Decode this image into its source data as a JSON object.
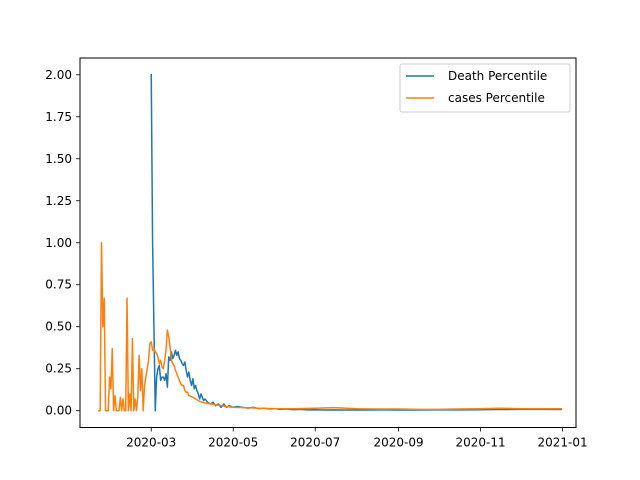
{
  "chart_data": {
    "type": "line",
    "x_axis": {
      "kind": "date",
      "xlim": [
        "2020-01-08",
        "2021-01-11"
      ],
      "ticks": [
        "2020-03-01",
        "2020-05-01",
        "2020-07-01",
        "2020-09-01",
        "2020-11-01",
        "2021-01-01"
      ],
      "tick_labels": [
        "2020-03",
        "2020-05",
        "2020-07",
        "2020-09",
        "2020-11",
        "2021-01"
      ]
    },
    "y_axis": {
      "ylim": [
        -0.1,
        2.1
      ],
      "ticks": [
        0,
        0.25,
        0.5,
        0.75,
        1.0,
        1.25,
        1.5,
        1.75,
        2.0
      ],
      "tick_labels": [
        "0.00",
        "0.25",
        "0.50",
        "0.75",
        "1.00",
        "1.25",
        "1.50",
        "1.75",
        "2.00"
      ]
    },
    "grid": false,
    "legend": {
      "placement": "upper right"
    },
    "series": [
      {
        "name": "Death Percentile",
        "color": "#1f77b4",
        "points": [
          [
            "2020-03-01",
            2.0
          ],
          [
            "2020-03-02",
            1.0
          ],
          [
            "2020-03-03",
            0.5
          ],
          [
            "2020-03-04",
            0.0
          ],
          [
            "2020-03-05",
            0.2
          ],
          [
            "2020-03-06",
            0.25
          ],
          [
            "2020-03-07",
            0.27
          ],
          [
            "2020-03-08",
            0.18
          ],
          [
            "2020-03-09",
            0.2
          ],
          [
            "2020-03-10",
            0.2
          ],
          [
            "2020-03-11",
            0.18
          ],
          [
            "2020-03-12",
            0.22
          ],
          [
            "2020-03-13",
            0.14
          ],
          [
            "2020-03-14",
            0.32
          ],
          [
            "2020-03-15",
            0.3
          ],
          [
            "2020-03-16",
            0.35
          ],
          [
            "2020-03-17",
            0.31
          ],
          [
            "2020-03-18",
            0.33
          ],
          [
            "2020-03-19",
            0.36
          ],
          [
            "2020-03-20",
            0.33
          ],
          [
            "2020-03-21",
            0.35
          ],
          [
            "2020-03-22",
            0.31
          ],
          [
            "2020-03-23",
            0.3
          ],
          [
            "2020-03-24",
            0.28
          ],
          [
            "2020-03-25",
            0.27
          ],
          [
            "2020-03-26",
            0.29
          ],
          [
            "2020-03-27",
            0.24
          ],
          [
            "2020-03-28",
            0.2
          ],
          [
            "2020-03-29",
            0.23
          ],
          [
            "2020-03-30",
            0.18
          ],
          [
            "2020-03-31",
            0.15
          ],
          [
            "2020-04-01",
            0.19
          ],
          [
            "2020-04-02",
            0.13
          ],
          [
            "2020-04-03",
            0.15
          ],
          [
            "2020-04-04",
            0.12
          ],
          [
            "2020-04-05",
            0.1
          ],
          [
            "2020-04-06",
            0.07
          ],
          [
            "2020-04-07",
            0.1
          ],
          [
            "2020-04-08",
            0.08
          ],
          [
            "2020-04-09",
            0.06
          ],
          [
            "2020-04-10",
            0.07
          ],
          [
            "2020-04-12",
            0.05
          ],
          [
            "2020-04-14",
            0.04
          ],
          [
            "2020-04-16",
            0.05
          ],
          [
            "2020-04-18",
            0.03
          ],
          [
            "2020-04-20",
            0.04
          ],
          [
            "2020-04-22",
            0.02
          ],
          [
            "2020-04-24",
            0.04
          ],
          [
            "2020-04-26",
            0.02
          ],
          [
            "2020-04-28",
            0.03
          ],
          [
            "2020-05-01",
            0.02
          ],
          [
            "2020-05-04",
            0.025
          ],
          [
            "2020-05-08",
            0.02
          ],
          [
            "2020-05-12",
            0.015
          ],
          [
            "2020-05-16",
            0.02
          ],
          [
            "2020-05-20",
            0.012
          ],
          [
            "2020-05-24",
            0.015
          ],
          [
            "2020-05-28",
            0.01
          ],
          [
            "2020-06-01",
            0.012
          ],
          [
            "2020-06-05",
            0.008
          ],
          [
            "2020-06-10",
            0.01
          ],
          [
            "2020-06-15",
            0.006
          ],
          [
            "2020-06-20",
            0.008
          ],
          [
            "2020-06-25",
            0.005
          ],
          [
            "2020-07-01",
            0.006
          ],
          [
            "2020-07-08",
            0.004
          ],
          [
            "2020-07-15",
            0.005
          ],
          [
            "2020-07-22",
            0.004
          ],
          [
            "2020-08-01",
            0.005
          ],
          [
            "2020-08-10",
            0.004
          ],
          [
            "2020-08-20",
            0.005
          ],
          [
            "2020-09-01",
            0.004
          ],
          [
            "2020-09-15",
            0.004
          ],
          [
            "2020-10-01",
            0.005
          ],
          [
            "2020-10-15",
            0.005
          ],
          [
            "2020-11-01",
            0.006
          ],
          [
            "2020-11-15",
            0.007
          ],
          [
            "2020-12-01",
            0.008
          ],
          [
            "2020-12-15",
            0.008
          ],
          [
            "2020-12-31",
            0.007
          ]
        ]
      },
      {
        "name": "cases Percentile",
        "color": "#ff7f0e",
        "points": [
          [
            "2020-01-22",
            0.0
          ],
          [
            "2020-01-23",
            0.0
          ],
          [
            "2020-01-24",
            1.0
          ],
          [
            "2020-01-25",
            0.5
          ],
          [
            "2020-01-26",
            0.67
          ],
          [
            "2020-01-27",
            0.0
          ],
          [
            "2020-01-28",
            0.0
          ],
          [
            "2020-01-29",
            0.0
          ],
          [
            "2020-01-30",
            0.2
          ],
          [
            "2020-01-31",
            0.13
          ],
          [
            "2020-02-01",
            0.37
          ],
          [
            "2020-02-02",
            0.0
          ],
          [
            "2020-02-03",
            0.09
          ],
          [
            "2020-02-04",
            0.0
          ],
          [
            "2020-02-05",
            0.0
          ],
          [
            "2020-02-06",
            0.0
          ],
          [
            "2020-02-07",
            0.08
          ],
          [
            "2020-02-08",
            0.0
          ],
          [
            "2020-02-09",
            0.07
          ],
          [
            "2020-02-10",
            0.0
          ],
          [
            "2020-02-11",
            0.0
          ],
          [
            "2020-02-12",
            0.67
          ],
          [
            "2020-02-13",
            0.0
          ],
          [
            "2020-02-14",
            0.1
          ],
          [
            "2020-02-15",
            0.0
          ],
          [
            "2020-02-16",
            0.43
          ],
          [
            "2020-02-17",
            0.0
          ],
          [
            "2020-02-18",
            0.07
          ],
          [
            "2020-02-19",
            0.0
          ],
          [
            "2020-02-20",
            0.08
          ],
          [
            "2020-02-21",
            0.33
          ],
          [
            "2020-02-22",
            0.12
          ],
          [
            "2020-02-23",
            0.25
          ],
          [
            "2020-02-24",
            0.0
          ],
          [
            "2020-02-25",
            0.15
          ],
          [
            "2020-02-26",
            0.2
          ],
          [
            "2020-02-27",
            0.25
          ],
          [
            "2020-02-28",
            0.3
          ],
          [
            "2020-02-29",
            0.4
          ],
          [
            "2020-03-01",
            0.41
          ],
          [
            "2020-03-02",
            0.36
          ],
          [
            "2020-03-03",
            0.37
          ],
          [
            "2020-03-04",
            0.35
          ],
          [
            "2020-03-05",
            0.34
          ],
          [
            "2020-03-06",
            0.32
          ],
          [
            "2020-03-07",
            0.28
          ],
          [
            "2020-03-08",
            0.3
          ],
          [
            "2020-03-09",
            0.26
          ],
          [
            "2020-03-10",
            0.25
          ],
          [
            "2020-03-11",
            0.3
          ],
          [
            "2020-03-12",
            0.36
          ],
          [
            "2020-03-13",
            0.48
          ],
          [
            "2020-03-14",
            0.44
          ],
          [
            "2020-03-15",
            0.38
          ],
          [
            "2020-03-16",
            0.3
          ],
          [
            "2020-03-17",
            0.28
          ],
          [
            "2020-03-18",
            0.27
          ],
          [
            "2020-03-19",
            0.24
          ],
          [
            "2020-03-20",
            0.22
          ],
          [
            "2020-03-21",
            0.2
          ],
          [
            "2020-03-22",
            0.18
          ],
          [
            "2020-03-23",
            0.16
          ],
          [
            "2020-03-24",
            0.15
          ],
          [
            "2020-03-25",
            0.15
          ],
          [
            "2020-03-26",
            0.12
          ],
          [
            "2020-03-27",
            0.11
          ],
          [
            "2020-03-28",
            0.11
          ],
          [
            "2020-03-29",
            0.09
          ],
          [
            "2020-04-01",
            0.08
          ],
          [
            "2020-04-05",
            0.06
          ],
          [
            "2020-04-08",
            0.05
          ],
          [
            "2020-04-11",
            0.045
          ],
          [
            "2020-04-15",
            0.04
          ],
          [
            "2020-04-18",
            0.035
          ],
          [
            "2020-04-22",
            0.03
          ],
          [
            "2020-04-26",
            0.025
          ],
          [
            "2020-05-01",
            0.02
          ],
          [
            "2020-05-10",
            0.018
          ],
          [
            "2020-05-20",
            0.015
          ],
          [
            "2020-06-01",
            0.012
          ],
          [
            "2020-06-15",
            0.012
          ],
          [
            "2020-07-01",
            0.015
          ],
          [
            "2020-07-15",
            0.018
          ],
          [
            "2020-08-01",
            0.012
          ],
          [
            "2020-08-15",
            0.01
          ],
          [
            "2020-09-01",
            0.01
          ],
          [
            "2020-09-15",
            0.008
          ],
          [
            "2020-10-01",
            0.008
          ],
          [
            "2020-10-15",
            0.01
          ],
          [
            "2020-11-01",
            0.012
          ],
          [
            "2020-11-15",
            0.015
          ],
          [
            "2020-12-01",
            0.012
          ],
          [
            "2020-12-15",
            0.012
          ],
          [
            "2020-12-31",
            0.012
          ]
        ]
      }
    ]
  }
}
